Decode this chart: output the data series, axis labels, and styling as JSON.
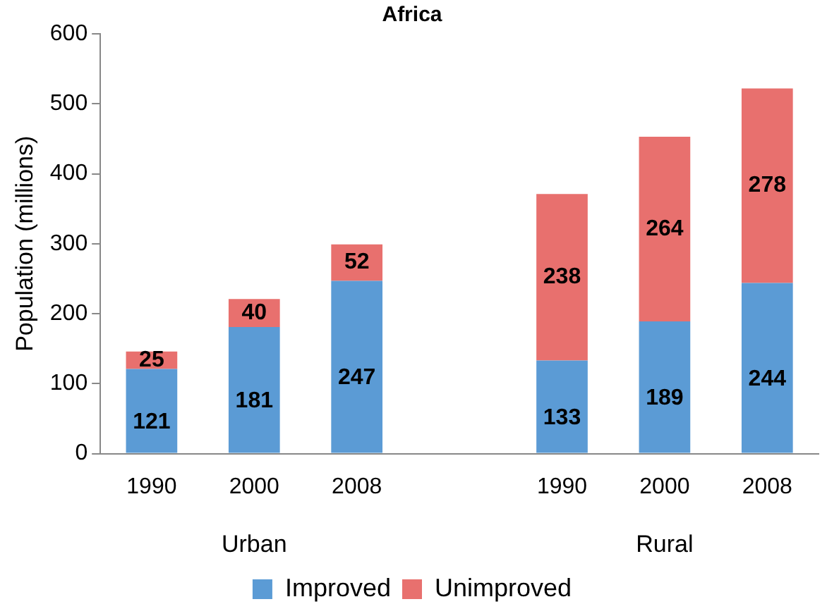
{
  "chart_data": {
    "type": "bar",
    "title": "Africa",
    "ylabel": "Population (millions)",
    "categories": [
      "1990",
      "2000",
      "2008",
      null,
      "1990",
      "2000",
      "2008"
    ],
    "series": [
      {
        "name": "Improved",
        "color": "#5b9bd5",
        "values": [
          121,
          181,
          247,
          null,
          133,
          189,
          244
        ]
      },
      {
        "name": "Unimproved",
        "color": "#e8706e",
        "values": [
          25,
          40,
          52,
          null,
          238,
          264,
          278
        ]
      }
    ],
    "stacked": true,
    "ylim": [
      0,
      600
    ],
    "yticks": [
      0,
      100,
      200,
      300,
      400,
      500,
      600
    ],
    "grid": false,
    "legend": "bottom",
    "data_labels": true,
    "annotations": [
      "Urban",
      "Rural"
    ]
  }
}
